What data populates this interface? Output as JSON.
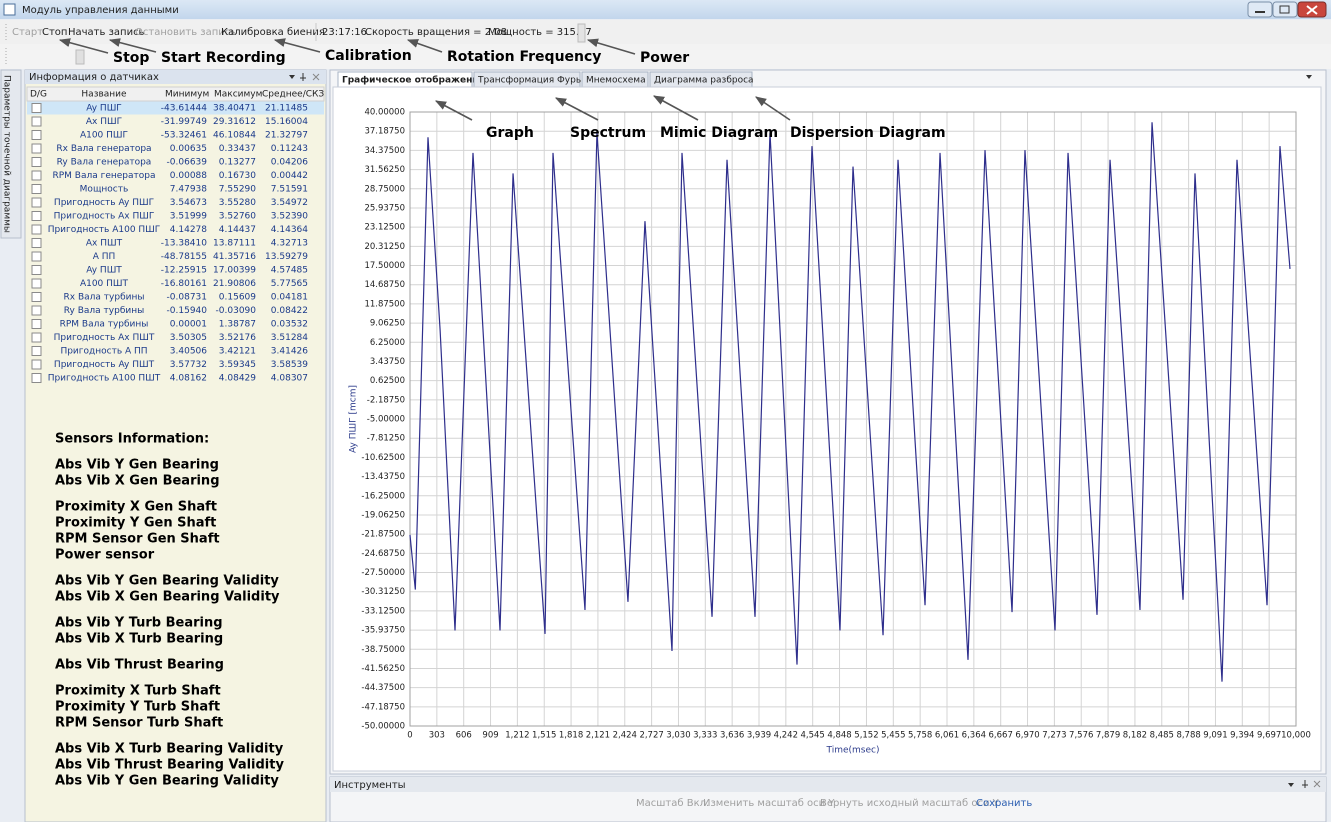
{
  "window": {
    "title": "Модуль управления данными"
  },
  "toolbar": {
    "buttons": [
      "Старт",
      "Стоп",
      "Начать запись",
      "Остановить запись",
      "Калибровка биения"
    ],
    "time": "23:17:16",
    "rotation": "Скорость вращения = 2.08",
    "power": "Мощность = 315.67"
  },
  "toolbar_annotations": [
    "Stop",
    "Start Recording",
    "Calibration",
    "Rotation Frequency",
    "Power"
  ],
  "side_tab": "Параметры точечной диаграммы",
  "sensor_panel": {
    "title": "Информация о датчиках",
    "columns": [
      "D/G",
      "Название",
      "Минимум",
      "Максимум",
      "Среднее/СКЗ"
    ],
    "rows": [
      [
        "Ay ПШГ",
        "-43.61444",
        "38.40471",
        "21.11485"
      ],
      [
        "Ax ПШГ",
        "-31.99749",
        "29.31612",
        "15.16004"
      ],
      [
        "A100 ПШГ",
        "-53.32461",
        "46.10844",
        "21.32797"
      ],
      [
        "Rx Вала генератора",
        "0.00635",
        "0.33437",
        "0.11243"
      ],
      [
        "Ry Вала генератора",
        "-0.06639",
        "0.13277",
        "0.04206"
      ],
      [
        "RPM Вала генератора",
        "0.00088",
        "0.16730",
        "0.00442"
      ],
      [
        "Мощность",
        "7.47938",
        "7.55290",
        "7.51591"
      ],
      [
        "Пригодность Ay ПШГ",
        "3.54673",
        "3.55280",
        "3.54972"
      ],
      [
        "Пригодность Ax ПШГ",
        "3.51999",
        "3.52760",
        "3.52390"
      ],
      [
        "Пригодность A100 ПШГ",
        "4.14278",
        "4.14437",
        "4.14364"
      ],
      [
        "Ax ПШТ",
        "-13.38410",
        "13.87111",
        "4.32713"
      ],
      [
        "A ПП",
        "-48.78155",
        "41.35716",
        "13.59279"
      ],
      [
        "Ay ПШТ",
        "-12.25915",
        "17.00399",
        "4.57485"
      ],
      [
        "A100 ПШТ",
        "-16.80161",
        "21.90806",
        "5.77565"
      ],
      [
        "Rx Вала турбины",
        "-0.08731",
        "0.15609",
        "0.04181"
      ],
      [
        "Ry Вала турбины",
        "-0.15940",
        "-0.03090",
        "0.08422"
      ],
      [
        "RPM Вала турбины",
        "0.00001",
        "1.38787",
        "0.03532"
      ],
      [
        "Пригодность Ax  ПШТ",
        "3.50305",
        "3.52176",
        "3.51284"
      ],
      [
        "Пригодность A ПП",
        "3.40506",
        "3.42121",
        "3.41426"
      ],
      [
        "Пригодность Ay ПШТ",
        "3.57732",
        "3.59345",
        "3.58539"
      ],
      [
        "Пригодность A100 ПШТ",
        "4.08162",
        "4.08429",
        "4.08307"
      ]
    ]
  },
  "sensors_info": {
    "title": "Sensors Information:",
    "groups": [
      [
        "Abs Vib Y Gen Bearing",
        "Abs Vib X Gen Bearing"
      ],
      [
        "Proximity X Gen Shaft",
        "Proximity Y Gen Shaft",
        "RPM Sensor Gen Shaft",
        "Power sensor"
      ],
      [
        "Abs Vib Y Gen Bearing Validity",
        "Abs Vib X Gen Bearing Validity"
      ],
      [
        "Abs Vib Y Turb Bearing",
        "Abs Vib X Turb Bearing"
      ],
      [
        "Abs Vib Thrust Bearing"
      ],
      [
        "Proximity X Turb Shaft",
        "Proximity Y Turb Shaft",
        "RPM Sensor Turb Shaft"
      ],
      [
        "Abs Vib X Turb Bearing Validity",
        "Abs Vib Thrust Bearing Validity",
        "Abs Vib Y Gen Bearing Validity"
      ]
    ]
  },
  "tabs": [
    "Графическое отображение",
    "Трансформация Фурье",
    "Мнемосхема",
    "Диаграмма разброса"
  ],
  "tab_annotations": [
    "Graph",
    "Spectrum",
    "Mimic Diagram",
    "Dispersion Diagram"
  ],
  "chart_data": {
    "type": "line",
    "y_label": "Ay ПШГ [mcm]",
    "x_label": "Time(msec)",
    "x": [
      0,
      60,
      203,
      340,
      508,
      711,
      1016,
      1163,
      1524,
      1614,
      1975,
      2110,
      2460,
      2652,
      2957,
      3070,
      3409,
      3578,
      3894,
      4063,
      4368,
      4537,
      4853,
      5000,
      5339,
      5508,
      5813,
      5982,
      6298,
      6490,
      6795,
      6941,
      7280,
      7427,
      7754,
      7901,
      8239,
      8375,
      8725,
      8860,
      9165,
      9334,
      9673,
      9819,
      9932
    ],
    "series": [
      {
        "color": "#2e2e8c",
        "values": [
          -22,
          -30,
          36.3,
          8,
          -36,
          34,
          -36,
          31,
          -36.5,
          34,
          -33,
          37,
          -31.8,
          24,
          -39,
          34,
          -34,
          33,
          -34,
          37,
          -41,
          35,
          -36,
          32,
          -36.7,
          33,
          -32.3,
          34,
          -40.3,
          34.4,
          -33.3,
          34.4,
          -36,
          34,
          -33.7,
          33,
          -33,
          38.5,
          -31.5,
          31,
          -43.5,
          33,
          -32.3,
          35,
          17
        ]
      }
    ],
    "xlim": [
      0,
      10000
    ],
    "ylim": [
      -50,
      40
    ],
    "xticks": [
      0,
      303,
      606,
      909,
      {
        "value": 1212,
        "label": "1,212"
      },
      {
        "value": 1515,
        "label": "1,515"
      },
      {
        "value": 1818,
        "label": "1,818"
      },
      {
        "value": 2121,
        "label": "2,121"
      },
      {
        "value": 2424,
        "label": "2,424"
      },
      {
        "value": 2727,
        "label": "2,727"
      },
      {
        "value": 3030,
        "label": "3,030"
      },
      {
        "value": 3333,
        "label": "3,333"
      },
      {
        "value": 3636,
        "label": "3,636"
      },
      {
        "value": 3939,
        "label": "3,939"
      },
      {
        "value": 4242,
        "label": "4,242"
      },
      {
        "value": 4545,
        "label": "4,545"
      },
      {
        "value": 4848,
        "label": "4,848"
      },
      {
        "value": 5152,
        "label": "5,152"
      },
      {
        "value": 5455,
        "label": "5,455"
      },
      {
        "value": 5758,
        "label": "5,758"
      },
      {
        "value": 6061,
        "label": "6,061"
      },
      {
        "value": 6364,
        "label": "6,364"
      },
      {
        "value": 6667,
        "label": "6,667"
      },
      {
        "value": 6970,
        "label": "6,970"
      },
      {
        "value": 7273,
        "label": "7,273"
      },
      {
        "value": 7576,
        "label": "7,576"
      },
      {
        "value": 7879,
        "label": "7,879"
      },
      {
        "value": 8182,
        "label": "8,182"
      },
      {
        "value": 8485,
        "label": "8,485"
      },
      {
        "value": 8788,
        "label": "8,788"
      },
      {
        "value": 9091,
        "label": "9,091"
      },
      {
        "value": 9394,
        "label": "9,394"
      },
      {
        "value": 9697,
        "label": "9,697"
      },
      {
        "value": 10000,
        "label": "10,000"
      }
    ],
    "yticks": [
      {
        "value": 40,
        "label": "40.00000"
      },
      {
        "value": 37.1875,
        "label": "37.18750"
      },
      {
        "value": 34.375,
        "label": "34.37500"
      },
      {
        "value": 31.5625,
        "label": "31.56250"
      },
      {
        "value": 28.75,
        "label": "28.75000"
      },
      {
        "value": 25.9375,
        "label": "25.93750"
      },
      {
        "value": 23.125,
        "label": "23.12500"
      },
      {
        "value": 20.3125,
        "label": "20.31250"
      },
      {
        "value": 17.5,
        "label": "17.50000"
      },
      {
        "value": 14.6875,
        "label": "14.68750"
      },
      {
        "value": 11.875,
        "label": "11.87500"
      },
      {
        "value": 9.0625,
        "label": "9.06250"
      },
      {
        "value": 6.25,
        "label": "6.25000"
      },
      {
        "value": 3.4375,
        "label": "3.43750"
      },
      {
        "value": 0.625,
        "label": "0.62500"
      },
      {
        "value": -2.1875,
        "label": "-2.18750"
      },
      {
        "value": -5,
        "label": "-5.00000"
      },
      {
        "value": -7.8125,
        "label": "-7.81250"
      },
      {
        "value": -10.625,
        "label": "-10.62500"
      },
      {
        "value": -13.4375,
        "label": "-13.43750"
      },
      {
        "value": -16.25,
        "label": "-16.25000"
      },
      {
        "value": -19.0625,
        "label": "-19.06250"
      },
      {
        "value": -21.875,
        "label": "-21.87500"
      },
      {
        "value": -24.6875,
        "label": "-24.68750"
      },
      {
        "value": -27.5,
        "label": "-27.50000"
      },
      {
        "value": -30.3125,
        "label": "-30.31250"
      },
      {
        "value": -33.125,
        "label": "-33.12500"
      },
      {
        "value": -35.9375,
        "label": "-35.93750"
      },
      {
        "value": -38.75,
        "label": "-38.75000"
      },
      {
        "value": -41.5625,
        "label": "-41.56250"
      },
      {
        "value": -44.375,
        "label": "-44.37500"
      },
      {
        "value": -47.1875,
        "label": "-47.18750"
      },
      {
        "value": -50,
        "label": "-50.00000"
      }
    ],
    "grid": true
  },
  "tools_panel": {
    "title": "Инструменты",
    "buttons": [
      "Масштаб Вкл.",
      "Изменить масштаб оси Y",
      "Вернуть исходный масштаб оси Y",
      "Сохранить"
    ]
  }
}
